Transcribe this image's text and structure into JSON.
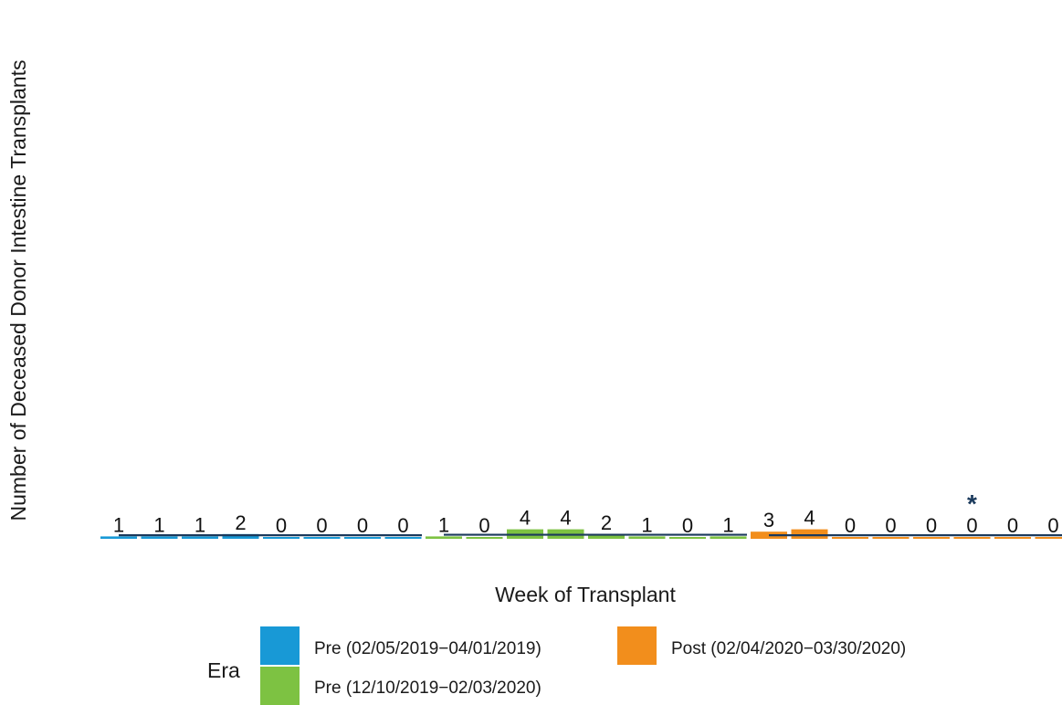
{
  "chart_data": {
    "type": "bar",
    "ylabel": "Number of Deceased Donor Intestine Transplants",
    "xlabel": "Week of Transplant",
    "legend": {
      "title": "Era",
      "placement": "bottom",
      "entries": [
        {
          "name": "Pre (02/05/2019−04/01/2019)",
          "color": "#1899D6"
        },
        {
          "name": "Pre (12/10/2019−02/03/2020)",
          "color": "#7DC242"
        },
        {
          "name": "Post (02/04/2020−03/30/2020)",
          "color": "#F28E1C"
        }
      ]
    },
    "ylim": [
      0,
      60
    ],
    "grid": false,
    "colors": {
      "expected_line": "#1B3A5C",
      "asterisk": "#1B3A5C"
    },
    "series": [
      {
        "name": "Pre (02/05/2019−04/01/2019)",
        "values": [
          1,
          1,
          1,
          2,
          0,
          0,
          0,
          0
        ]
      },
      {
        "name": "Pre (12/10/2019−02/03/2020)",
        "values": [
          1,
          0,
          4,
          4,
          2,
          1,
          0,
          1
        ]
      },
      {
        "name": "Post (02/04/2020−03/30/2020)",
        "values": [
          3,
          4,
          0,
          0,
          0,
          0,
          0,
          0
        ]
      }
    ],
    "expected": [
      [
        1.5,
        1.5,
        1.5,
        1.5,
        1.5,
        1.5,
        1.5,
        1.5
      ],
      [
        1.7,
        1.7,
        1.7,
        1.7,
        1.7,
        1.7,
        1.7,
        1.7
      ],
      [
        1.5,
        1.5,
        1.5,
        1.5,
        1.5,
        1.5,
        1.5,
        1.5
      ]
    ],
    "annotations": [
      {
        "series": 2,
        "index": 5,
        "text": "*"
      }
    ]
  }
}
